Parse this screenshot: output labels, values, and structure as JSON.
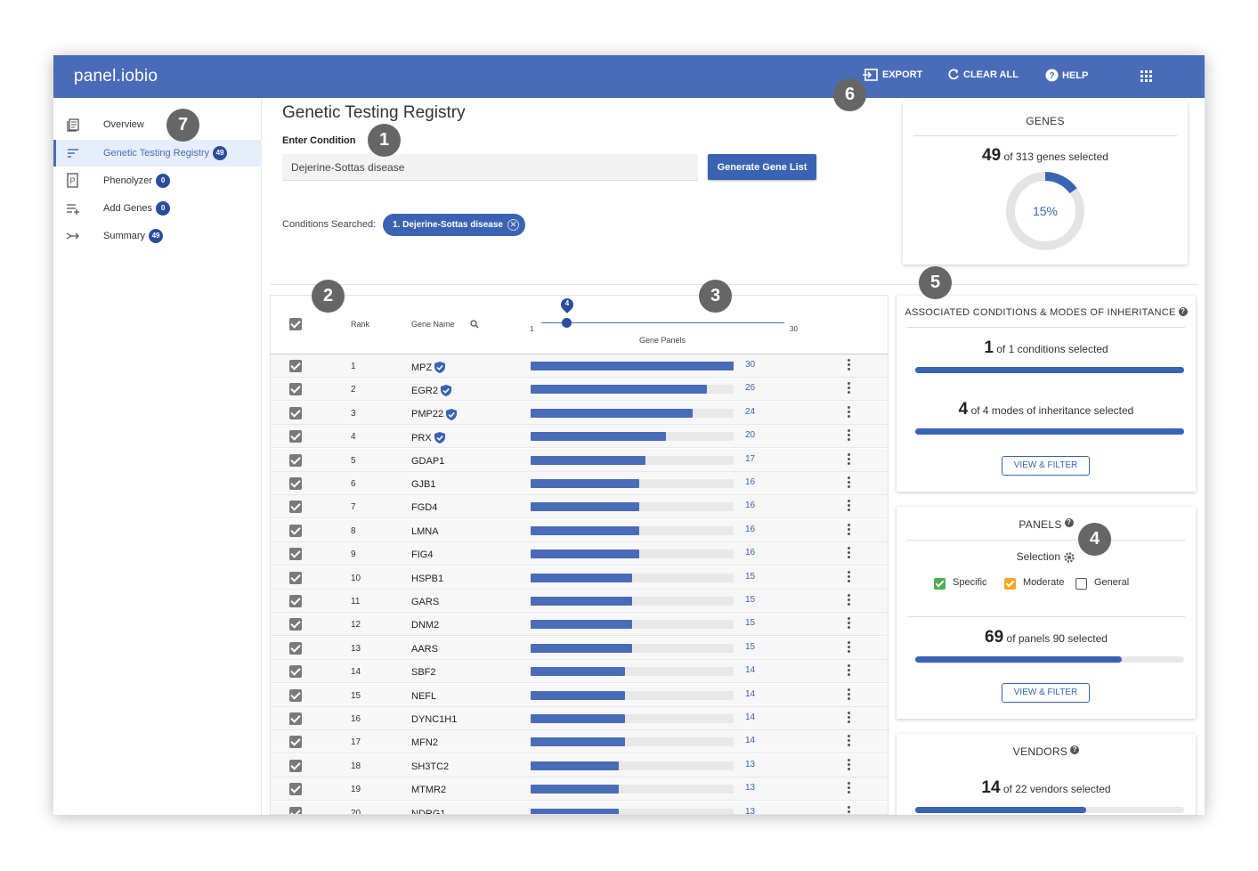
{
  "app": {
    "logo": "panel.iobio"
  },
  "topbar": {
    "export_label": "EXPORT",
    "clear_label": "CLEAR ALL",
    "help_label": "HELP"
  },
  "sidebar": {
    "items": [
      {
        "label": "Overview",
        "icon": "document-stack-icon"
      },
      {
        "label": "Genetic Testing Registry",
        "badge": "49",
        "icon": "sort-lines-icon",
        "active": true
      },
      {
        "label": "Phenolyzer",
        "badge": "0",
        "icon": "p-box-icon"
      },
      {
        "label": "Add Genes",
        "badge": "0",
        "icon": "list-add-icon"
      },
      {
        "label": "Summary",
        "badge": "49",
        "icon": "merge-arrow-icon"
      }
    ]
  },
  "callouts": [
    "1",
    "2",
    "3",
    "4",
    "5",
    "6",
    "7"
  ],
  "gtr": {
    "title": "Genetic Testing Registry",
    "enter_condition_label": "Enter Condition",
    "condition_value": "Dejerine-Sottas disease",
    "generate_button": "Generate Gene List",
    "conditions_searched_label": "Conditions Searched:",
    "chip_label": "1. Dejerine-Sottas disease"
  },
  "table": {
    "header": {
      "rank": "Rank",
      "gene_name": "Gene Name",
      "gene_panels": "Gene Panels",
      "slider_min": "1",
      "slider_max": "30",
      "slider_value": "4"
    },
    "max_panels": 30,
    "rows": [
      {
        "rank": "1",
        "gene": "MPZ",
        "panels": 30,
        "verified": true
      },
      {
        "rank": "2",
        "gene": "EGR2",
        "panels": 26,
        "verified": true
      },
      {
        "rank": "3",
        "gene": "PMP22",
        "panels": 24,
        "verified": true
      },
      {
        "rank": "4",
        "gene": "PRX",
        "panels": 20,
        "verified": true
      },
      {
        "rank": "5",
        "gene": "GDAP1",
        "panels": 17,
        "verified": false
      },
      {
        "rank": "6",
        "gene": "GJB1",
        "panels": 16,
        "verified": false
      },
      {
        "rank": "7",
        "gene": "FGD4",
        "panels": 16,
        "verified": false
      },
      {
        "rank": "8",
        "gene": "LMNA",
        "panels": 16,
        "verified": false
      },
      {
        "rank": "9",
        "gene": "FIG4",
        "panels": 16,
        "verified": false
      },
      {
        "rank": "10",
        "gene": "HSPB1",
        "panels": 15,
        "verified": false
      },
      {
        "rank": "11",
        "gene": "GARS",
        "panels": 15,
        "verified": false
      },
      {
        "rank": "12",
        "gene": "DNM2",
        "panels": 15,
        "verified": false
      },
      {
        "rank": "13",
        "gene": "AARS",
        "panels": 15,
        "verified": false
      },
      {
        "rank": "14",
        "gene": "SBF2",
        "panels": 14,
        "verified": false
      },
      {
        "rank": "15",
        "gene": "NEFL",
        "panels": 14,
        "verified": false
      },
      {
        "rank": "16",
        "gene": "DYNC1H1",
        "panels": 14,
        "verified": false
      },
      {
        "rank": "17",
        "gene": "MFN2",
        "panels": 14,
        "verified": false
      },
      {
        "rank": "18",
        "gene": "SH3TC2",
        "panels": 13,
        "verified": false
      },
      {
        "rank": "19",
        "gene": "MTMR2",
        "panels": 13,
        "verified": false
      },
      {
        "rank": "20",
        "gene": "NDRG1",
        "panels": 13,
        "verified": false
      }
    ]
  },
  "genes_card": {
    "title": "GENES",
    "count": "49",
    "text": "of 313 genes selected",
    "percent_label": "15%",
    "fraction": 0.15
  },
  "conditions_card": {
    "title": "ASSOCIATED CONDITIONS & MODES OF INHERITANCE",
    "cond_count": "1",
    "cond_text": "of 1 conditions selected",
    "cond_fraction": 1.0,
    "moi_count": "4",
    "moi_text": "of 4 modes of inheritance selected",
    "moi_fraction": 1.0,
    "button": "VIEW & FILTER"
  },
  "panels_card": {
    "title": "PANELS",
    "selection_label": "Selection",
    "legend": [
      {
        "label": "Specific",
        "color": "#4caf50",
        "checked": true
      },
      {
        "label": "Moderate",
        "color": "#f5a623",
        "checked": true
      },
      {
        "label": "General",
        "color": "#ffffff",
        "checked": false
      }
    ],
    "count": "69",
    "text": "of panels 90 selected",
    "fraction": 0.767,
    "button": "VIEW & FILTER"
  },
  "vendors_card": {
    "title": "VENDORS",
    "count": "14",
    "text": "of 22 vendors selected",
    "fraction": 0.636
  },
  "colors": {
    "accent": "#4a6cb8",
    "button": "#3a63b3",
    "badge": "#2a4d9c"
  }
}
